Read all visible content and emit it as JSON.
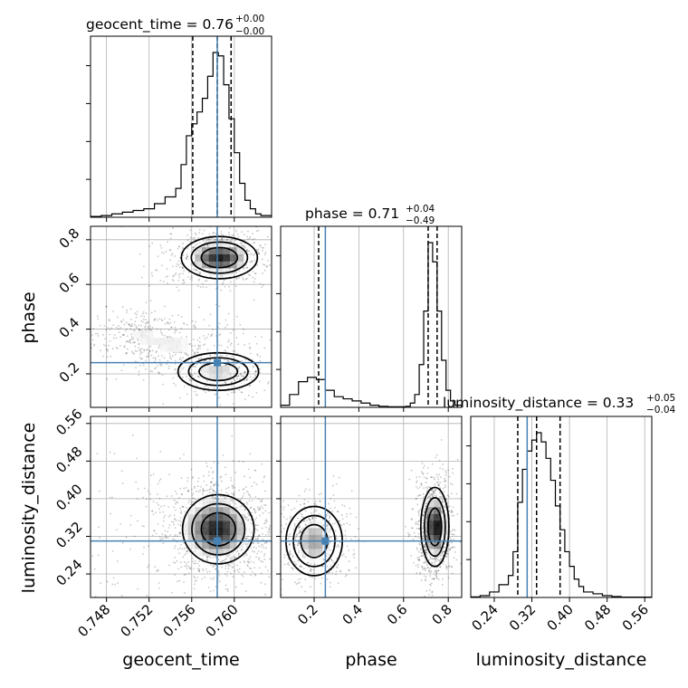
{
  "chart_data": {
    "type": "corner",
    "parameters": [
      "geocent_time",
      "phase",
      "luminosity_distance"
    ],
    "truths": {
      "geocent_time": 0.7584,
      "phase": 0.25,
      "luminosity_distance": 0.31
    },
    "grid": true,
    "titles": {
      "geocent_time": {
        "name": "geocent_time",
        "median": "0.76",
        "plus": "+0.00",
        "minus": "−0.00"
      },
      "phase": {
        "name": "phase",
        "median": "0.71",
        "plus": "+0.04",
        "minus": "−0.49"
      },
      "luminosity_distance": {
        "name": "luminosity_distance",
        "median": "0.33",
        "plus": "+0.05",
        "minus": "−0.04"
      }
    },
    "axes": {
      "geocent_time": {
        "range": [
          0.7465,
          0.7635
        ],
        "ticks": [
          0.748,
          0.752,
          0.756,
          0.76
        ],
        "tick_labels": [
          "0.748",
          "0.752",
          "0.756",
          "0.760"
        ]
      },
      "phase": {
        "range": [
          0.05,
          0.86
        ],
        "ticks": [
          0.2,
          0.4,
          0.6,
          0.8
        ],
        "tick_labels": [
          "0.2",
          "0.4",
          "0.6",
          "0.8"
        ]
      },
      "luminosity_distance": {
        "range": [
          0.19,
          0.575
        ],
        "ticks": [
          0.24,
          0.32,
          0.4,
          0.48,
          0.56
        ],
        "tick_labels": [
          "0.24",
          "0.32",
          "0.40",
          "0.48",
          "0.56"
        ]
      }
    },
    "marginals": {
      "geocent_time": {
        "bin_edges": [
          0.7465,
          0.7475,
          0.7485,
          0.7495,
          0.7505,
          0.7515,
          0.7525,
          0.7535,
          0.7545,
          0.755,
          0.7555,
          0.756,
          0.7565,
          0.757,
          0.7575,
          0.758,
          0.7585,
          0.759,
          0.7595,
          0.76,
          0.7605,
          0.761,
          0.7615,
          0.762,
          0.7625,
          0.7635
        ],
        "counts": [
          0.5,
          1,
          2,
          3,
          4,
          5,
          8,
          12,
          17,
          31,
          48,
          55,
          62,
          70,
          83,
          97,
          95,
          78,
          58,
          38,
          20,
          10,
          5,
          2,
          1
        ],
        "quantiles": [
          0.7561,
          0.7584,
          0.7597
        ]
      },
      "phase": {
        "bin_edges": [
          0.05,
          0.09,
          0.13,
          0.17,
          0.21,
          0.25,
          0.29,
          0.33,
          0.37,
          0.41,
          0.45,
          0.49,
          0.53,
          0.57,
          0.61,
          0.63,
          0.65,
          0.67,
          0.69,
          0.71,
          0.73,
          0.75,
          0.77,
          0.79,
          0.81,
          0.83,
          0.86
        ],
        "counts": [
          1,
          6,
          12,
          14,
          13,
          8,
          5,
          4,
          3,
          2,
          1,
          0.5,
          0.3,
          0.3,
          0.5,
          2,
          6,
          20,
          45,
          77,
          68,
          45,
          22,
          8,
          3,
          1
        ],
        "quantiles": [
          0.22,
          0.71,
          0.75
        ]
      },
      "luminosity_distance": {
        "bin_edges": [
          0.19,
          0.21,
          0.23,
          0.25,
          0.27,
          0.28,
          0.29,
          0.3,
          0.31,
          0.32,
          0.33,
          0.34,
          0.35,
          0.36,
          0.37,
          0.38,
          0.39,
          0.4,
          0.41,
          0.42,
          0.43,
          0.45,
          0.47,
          0.49,
          0.51,
          0.575
        ],
        "counts": [
          0.3,
          1,
          3,
          7,
          12,
          25,
          52,
          70,
          80,
          86,
          90,
          85,
          76,
          64,
          50,
          37,
          25,
          17,
          10,
          6,
          3,
          2,
          1,
          0.5,
          0.2
        ],
        "quantiles": [
          0.29,
          0.33,
          0.38
        ]
      }
    },
    "joint_modes": {
      "phase_vs_geocent_time": [
        {
          "x": 0.7586,
          "y": 0.72,
          "sx": 0.0017,
          "sy": 0.045,
          "weight": 1.0
        },
        {
          "x": 0.7585,
          "y": 0.21,
          "sx": 0.0018,
          "sy": 0.04,
          "weight": 0.45
        },
        {
          "x": 0.7545,
          "y": 0.33,
          "sx": 0.0025,
          "sy": 0.05,
          "weight": 0.35
        },
        {
          "x": 0.751,
          "y": 0.38,
          "sx": 0.0015,
          "sy": 0.04,
          "weight": 0.25
        }
      ],
      "luminosity_distance_vs_geocent_time": [
        {
          "x": 0.7585,
          "y": 0.335,
          "sx": 0.0016,
          "sy": 0.035,
          "weight": 1.0
        },
        {
          "x": 0.757,
          "y": 0.34,
          "sx": 0.0035,
          "sy": 0.06,
          "weight": 0.35
        }
      ],
      "luminosity_distance_vs_phase": [
        {
          "x": 0.74,
          "y": 0.34,
          "sx": 0.03,
          "sy": 0.04,
          "weight": 1.0
        },
        {
          "x": 0.2,
          "y": 0.31,
          "sx": 0.06,
          "sy": 0.035,
          "weight": 0.55
        }
      ]
    }
  }
}
